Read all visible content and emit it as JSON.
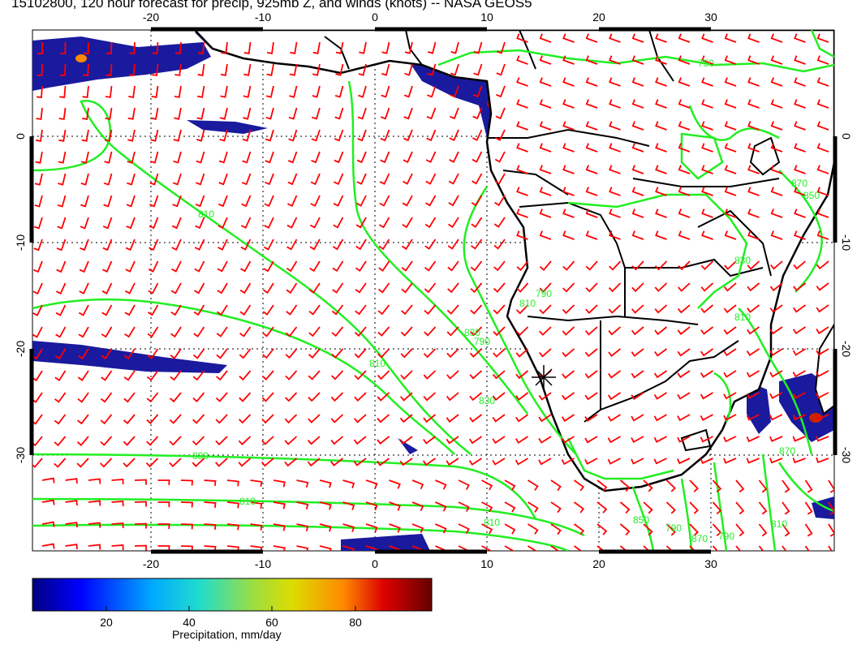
{
  "title": "15102800, 120 hour forecast for precip, 925mb Z, and winds (knots) -- NASA GEOS5",
  "map": {
    "lon_range": [
      -30,
      41
    ],
    "lat_range": [
      -39,
      10
    ],
    "lon_ticks": [
      "-20",
      "-10",
      "0",
      "10",
      "20",
      "30"
    ],
    "lat_ticks": [
      "0",
      "-10",
      "-20",
      "-30"
    ],
    "contour_labels": [
      "750",
      "810",
      "810",
      "810",
      "830",
      "830",
      "830",
      "790",
      "810",
      "790",
      "850",
      "790",
      "870",
      "790",
      "810",
      "830",
      "850",
      "870",
      "870",
      "810",
      "810"
    ],
    "colors": {
      "precip": "#1a1a9e",
      "wind": "#ff0000",
      "contour": "#22ee22",
      "coast": "#000000"
    }
  },
  "colorbar": {
    "ticks": [
      "20",
      "40",
      "60",
      "80"
    ],
    "range": [
      0,
      100
    ],
    "label": "Precipitation, mm/day"
  }
}
